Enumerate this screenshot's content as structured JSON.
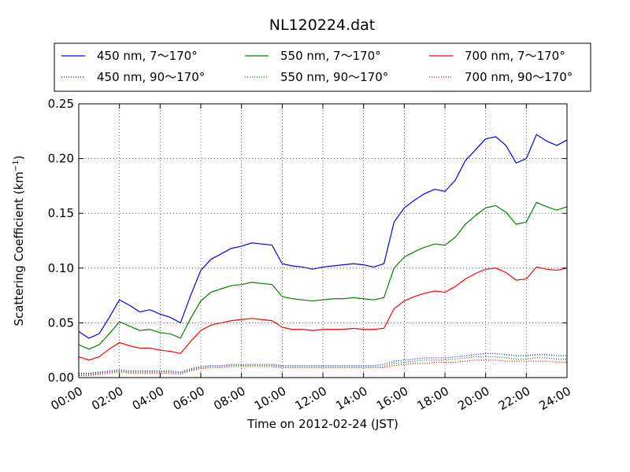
{
  "chart_data": {
    "type": "line",
    "title": "NL120224.dat",
    "xlabel": "Time on 2012-02-24 (JST)",
    "ylabel": "Scattering Coefficient (km",
    "ylabel_sup": "−1",
    "ylabel_close": ")",
    "xlim": [
      0,
      24
    ],
    "ylim": [
      0.0,
      0.25
    ],
    "grid": true,
    "legend_position": "top",
    "x_ticks": [
      {
        "value": 0,
        "label": "00:00"
      },
      {
        "value": 2,
        "label": "02:00"
      },
      {
        "value": 4,
        "label": "04:00"
      },
      {
        "value": 6,
        "label": "06:00"
      },
      {
        "value": 8,
        "label": "08:00"
      },
      {
        "value": 10,
        "label": "10:00"
      },
      {
        "value": 12,
        "label": "12:00"
      },
      {
        "value": 14,
        "label": "14:00"
      },
      {
        "value": 16,
        "label": "16:00"
      },
      {
        "value": 18,
        "label": "18:00"
      },
      {
        "value": 20,
        "label": "20:00"
      },
      {
        "value": 22,
        "label": "22:00"
      },
      {
        "value": 24,
        "label": "24:00"
      }
    ],
    "y_ticks": [
      {
        "value": 0.0,
        "label": "0.00"
      },
      {
        "value": 0.05,
        "label": "0.05"
      },
      {
        "value": 0.1,
        "label": "0.10"
      },
      {
        "value": 0.15,
        "label": "0.15"
      },
      {
        "value": 0.2,
        "label": "0.20"
      },
      {
        "value": 0.25,
        "label": "0.25"
      }
    ],
    "x": [
      0,
      0.5,
      1,
      1.5,
      2,
      2.5,
      3,
      3.5,
      4,
      4.5,
      5,
      5.5,
      6,
      6.5,
      7,
      7.5,
      8,
      8.5,
      9,
      9.5,
      10,
      10.5,
      11,
      11.5,
      12,
      12.5,
      13,
      13.5,
      14,
      14.5,
      15,
      15.5,
      16,
      16.5,
      17,
      17.5,
      18,
      18.5,
      19,
      19.5,
      20,
      20.5,
      21,
      21.5,
      22,
      22.5,
      23,
      23.5,
      24
    ],
    "series": [
      {
        "name": "450 nm, 7～170°",
        "color": "#0000ff",
        "style": "solid",
        "values": [
          0.042,
          0.036,
          0.04,
          0.055,
          0.071,
          0.066,
          0.06,
          0.062,
          0.058,
          0.055,
          0.05,
          0.075,
          0.098,
          0.108,
          0.113,
          0.118,
          0.12,
          0.123,
          0.122,
          0.121,
          0.104,
          0.102,
          0.101,
          0.099,
          0.101,
          0.102,
          0.103,
          0.104,
          0.103,
          0.101,
          0.104,
          0.142,
          0.155,
          0.162,
          0.168,
          0.172,
          0.17,
          0.18,
          0.198,
          0.208,
          0.218,
          0.22,
          0.212,
          0.196,
          0.2,
          0.222,
          0.216,
          0.212,
          0.217
        ]
      },
      {
        "name": "450 nm, 90～170°",
        "color": "#0000ff",
        "style": "dotted",
        "values": [
          0.004,
          0.004,
          0.005,
          0.006,
          0.007,
          0.006,
          0.006,
          0.006,
          0.006,
          0.006,
          0.005,
          0.008,
          0.01,
          0.011,
          0.011,
          0.012,
          0.012,
          0.012,
          0.012,
          0.012,
          0.011,
          0.011,
          0.011,
          0.011,
          0.011,
          0.011,
          0.011,
          0.011,
          0.011,
          0.011,
          0.012,
          0.015,
          0.016,
          0.017,
          0.018,
          0.018,
          0.018,
          0.019,
          0.02,
          0.021,
          0.022,
          0.022,
          0.021,
          0.02,
          0.02,
          0.021,
          0.021,
          0.02,
          0.02
        ]
      },
      {
        "name": "550 nm, 7～170°",
        "color": "#008000",
        "style": "solid",
        "values": [
          0.03,
          0.026,
          0.03,
          0.04,
          0.051,
          0.047,
          0.043,
          0.044,
          0.041,
          0.04,
          0.036,
          0.054,
          0.07,
          0.078,
          0.081,
          0.084,
          0.085,
          0.087,
          0.086,
          0.085,
          0.074,
          0.072,
          0.071,
          0.07,
          0.071,
          0.072,
          0.072,
          0.073,
          0.072,
          0.071,
          0.073,
          0.1,
          0.11,
          0.115,
          0.119,
          0.122,
          0.121,
          0.128,
          0.14,
          0.148,
          0.155,
          0.157,
          0.151,
          0.14,
          0.142,
          0.16,
          0.156,
          0.153,
          0.156
        ]
      },
      {
        "name": "550 nm, 90～170°",
        "color": "#008000",
        "style": "dotted",
        "values": [
          0.003,
          0.003,
          0.004,
          0.005,
          0.006,
          0.005,
          0.005,
          0.005,
          0.005,
          0.005,
          0.004,
          0.007,
          0.009,
          0.01,
          0.01,
          0.011,
          0.011,
          0.011,
          0.011,
          0.011,
          0.01,
          0.01,
          0.01,
          0.01,
          0.01,
          0.01,
          0.01,
          0.01,
          0.01,
          0.01,
          0.01,
          0.013,
          0.014,
          0.015,
          0.016,
          0.016,
          0.016,
          0.017,
          0.018,
          0.019,
          0.019,
          0.019,
          0.018,
          0.017,
          0.017,
          0.018,
          0.018,
          0.017,
          0.017
        ]
      },
      {
        "name": "700 nm, 7～170°",
        "color": "#ff0000",
        "style": "solid",
        "values": [
          0.019,
          0.016,
          0.019,
          0.026,
          0.032,
          0.029,
          0.027,
          0.027,
          0.025,
          0.024,
          0.022,
          0.033,
          0.043,
          0.048,
          0.05,
          0.052,
          0.053,
          0.054,
          0.053,
          0.052,
          0.046,
          0.044,
          0.044,
          0.043,
          0.044,
          0.044,
          0.044,
          0.045,
          0.044,
          0.044,
          0.045,
          0.063,
          0.07,
          0.074,
          0.077,
          0.079,
          0.078,
          0.083,
          0.09,
          0.095,
          0.099,
          0.1,
          0.096,
          0.089,
          0.09,
          0.101,
          0.099,
          0.098,
          0.1
        ]
      },
      {
        "name": "700 nm, 90～170°",
        "color": "#ff0000",
        "style": "dotted",
        "values": [
          0.002,
          0.002,
          0.003,
          0.004,
          0.005,
          0.004,
          0.004,
          0.004,
          0.004,
          0.004,
          0.003,
          0.006,
          0.008,
          0.009,
          0.009,
          0.01,
          0.01,
          0.01,
          0.01,
          0.01,
          0.009,
          0.009,
          0.009,
          0.009,
          0.009,
          0.009,
          0.009,
          0.009,
          0.009,
          0.009,
          0.009,
          0.011,
          0.012,
          0.013,
          0.013,
          0.014,
          0.014,
          0.014,
          0.015,
          0.016,
          0.016,
          0.016,
          0.015,
          0.015,
          0.015,
          0.015,
          0.015,
          0.014,
          0.014
        ]
      }
    ]
  }
}
